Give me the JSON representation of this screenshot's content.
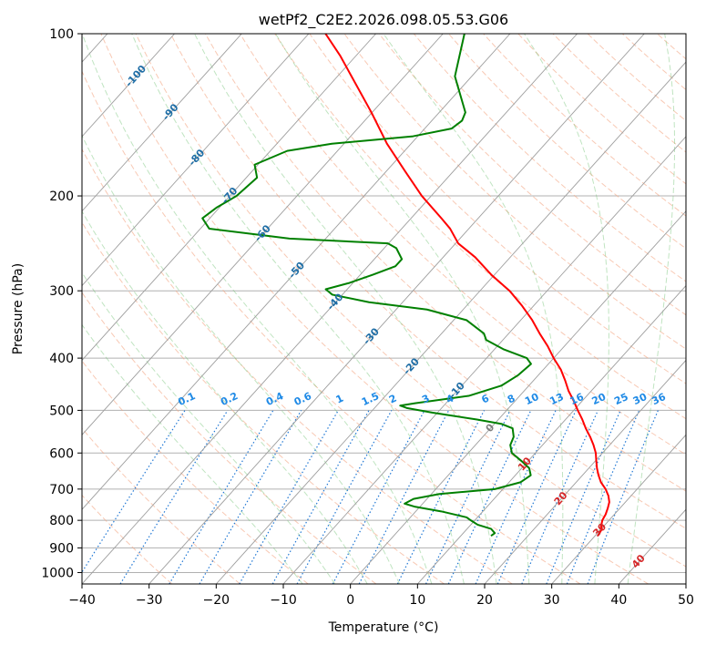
{
  "chart_data": {
    "type": "line",
    "title": "wetPf2_C2E2.2026.098.05.53.G06",
    "xlabel": "Temperature (°C)",
    "ylabel": "Pressure (hPa)",
    "xlim": [
      -40,
      50
    ],
    "ylim": [
      1050,
      100
    ],
    "y_scale": "log",
    "skew": true,
    "grid": true,
    "x_ticks": [
      -40,
      -30,
      -20,
      -10,
      0,
      10,
      20,
      30,
      40,
      50
    ],
    "y_ticks": [
      100,
      200,
      300,
      400,
      500,
      600,
      700,
      800,
      900,
      1000
    ],
    "isotherm_labels": [
      {
        "t": -100,
        "p": 120
      },
      {
        "t": -90,
        "p": 140
      },
      {
        "t": -80,
        "p": 170
      },
      {
        "t": -70,
        "p": 200
      },
      {
        "t": -60,
        "p": 235
      },
      {
        "t": -50,
        "p": 275
      },
      {
        "t": -40,
        "p": 315
      },
      {
        "t": -30,
        "p": 365
      },
      {
        "t": -20,
        "p": 415
      },
      {
        "t": -10,
        "p": 460
      },
      {
        "t": 0,
        "p": 540
      },
      {
        "t": 10,
        "p": 630
      },
      {
        "t": 20,
        "p": 730
      },
      {
        "t": 30,
        "p": 835
      },
      {
        "t": 40,
        "p": 955
      }
    ],
    "mixing_ratio_labels": [
      "0.1",
      "0.2",
      "0.4",
      "0.6",
      "1",
      "1.5",
      "2",
      "3",
      "4",
      "6",
      "8",
      "10",
      "13",
      "16",
      "20",
      "25",
      "30",
      "36"
    ],
    "mixing_ratio_values": [
      0.1,
      0.2,
      0.4,
      0.6,
      1,
      1.5,
      2,
      3,
      4,
      6,
      8,
      10,
      13,
      16,
      20,
      25,
      30,
      36
    ],
    "series": [
      {
        "name": "",
        "color": "#ff0000",
        "points": [
          {
            "p": 855,
            "t": 30.4
          },
          {
            "p": 845,
            "t": 30.3
          },
          {
            "p": 830,
            "t": 30.1
          },
          {
            "p": 820,
            "t": 29.6
          },
          {
            "p": 800,
            "t": 29.0
          },
          {
            "p": 780,
            "t": 28.7
          },
          {
            "p": 760,
            "t": 28.2
          },
          {
            "p": 740,
            "t": 27.6
          },
          {
            "p": 720,
            "t": 26.6
          },
          {
            "p": 700,
            "t": 25.3
          },
          {
            "p": 680,
            "t": 23.7
          },
          {
            "p": 660,
            "t": 22.4
          },
          {
            "p": 640,
            "t": 21.2
          },
          {
            "p": 620,
            "t": 20.1
          },
          {
            "p": 600,
            "t": 19.0
          },
          {
            "p": 580,
            "t": 17.6
          },
          {
            "p": 560,
            "t": 16.0
          },
          {
            "p": 540,
            "t": 14.2
          },
          {
            "p": 520,
            "t": 12.5
          },
          {
            "p": 500,
            "t": 10.6
          },
          {
            "p": 480,
            "t": 8.7
          },
          {
            "p": 460,
            "t": 6.6
          },
          {
            "p": 440,
            "t": 4.7
          },
          {
            "p": 420,
            "t": 2.6
          },
          {
            "p": 400,
            "t": 0.0
          },
          {
            "p": 380,
            "t": -2.5
          },
          {
            "p": 360,
            "t": -5.4
          },
          {
            "p": 340,
            "t": -8.3
          },
          {
            "p": 320,
            "t": -11.7
          },
          {
            "p": 300,
            "t": -15.6
          },
          {
            "p": 280,
            "t": -20.5
          },
          {
            "p": 260,
            "t": -25.2
          },
          {
            "p": 245,
            "t": -29.6
          },
          {
            "p": 230,
            "t": -32.8
          },
          {
            "p": 220,
            "t": -35.5
          },
          {
            "p": 200,
            "t": -41.4
          },
          {
            "p": 180,
            "t": -47.2
          },
          {
            "p": 160,
            "t": -53.6
          },
          {
            "p": 140,
            "t": -60.1
          },
          {
            "p": 120,
            "t": -67.9
          },
          {
            "p": 110,
            "t": -72.3
          },
          {
            "p": 100,
            "t": -77.5
          }
        ]
      },
      {
        "name": "",
        "color": "#008000",
        "points": [
          {
            "p": 855,
            "t": 14.5
          },
          {
            "p": 845,
            "t": 14.7
          },
          {
            "p": 830,
            "t": 13.6
          },
          {
            "p": 815,
            "t": 11.0
          },
          {
            "p": 800,
            "t": 9.4
          },
          {
            "p": 790,
            "t": 8.4
          },
          {
            "p": 770,
            "t": 3.8
          },
          {
            "p": 755,
            "t": -0.7
          },
          {
            "p": 745,
            "t": -2.7
          },
          {
            "p": 730,
            "t": -2.0
          },
          {
            "p": 715,
            "t": 1.2
          },
          {
            "p": 700,
            "t": 8.8
          },
          {
            "p": 680,
            "t": 11.7
          },
          {
            "p": 660,
            "t": 12.3
          },
          {
            "p": 640,
            "t": 11.1
          },
          {
            "p": 620,
            "t": 8.9
          },
          {
            "p": 600,
            "t": 6.5
          },
          {
            "p": 580,
            "t": 5.2
          },
          {
            "p": 560,
            "t": 4.6
          },
          {
            "p": 540,
            "t": 3.3
          },
          {
            "p": 530,
            "t": 1.1
          },
          {
            "p": 520,
            "t": -3.2
          },
          {
            "p": 505,
            "t": -10.7
          },
          {
            "p": 495,
            "t": -15.2
          },
          {
            "p": 490,
            "t": -16.5
          },
          {
            "p": 485,
            "t": -14.6
          },
          {
            "p": 470,
            "t": -7.6
          },
          {
            "p": 450,
            "t": -4.1
          },
          {
            "p": 430,
            "t": -3.0
          },
          {
            "p": 410,
            "t": -2.6
          },
          {
            "p": 400,
            "t": -4.0
          },
          {
            "p": 385,
            "t": -8.7
          },
          {
            "p": 370,
            "t": -12.5
          },
          {
            "p": 360,
            "t": -13.7
          },
          {
            "p": 340,
            "t": -18.1
          },
          {
            "p": 325,
            "t": -25.4
          },
          {
            "p": 315,
            "t": -35.0
          },
          {
            "p": 305,
            "t": -41.5
          },
          {
            "p": 298,
            "t": -43.2
          },
          {
            "p": 290,
            "t": -40.5
          },
          {
            "p": 280,
            "t": -38.1
          },
          {
            "p": 270,
            "t": -35.9
          },
          {
            "p": 262,
            "t": -35.9
          },
          {
            "p": 250,
            "t": -38.2
          },
          {
            "p": 245,
            "t": -40.1
          },
          {
            "p": 240,
            "t": -55.4
          },
          {
            "p": 230,
            "t": -68.7
          },
          {
            "p": 220,
            "t": -71.1
          },
          {
            "p": 210,
            "t": -70.4
          },
          {
            "p": 200,
            "t": -69.0
          },
          {
            "p": 185,
            "t": -68.4
          },
          {
            "p": 175,
            "t": -70.5
          },
          {
            "p": 165,
            "t": -67.5
          },
          {
            "p": 160,
            "t": -61.8
          },
          {
            "p": 155,
            "t": -50.7
          },
          {
            "p": 150,
            "t": -46.0
          },
          {
            "p": 145,
            "t": -45.5
          },
          {
            "p": 140,
            "t": -46.1
          },
          {
            "p": 120,
            "t": -52.5
          },
          {
            "p": 100,
            "t": -56.8
          }
        ]
      }
    ]
  }
}
